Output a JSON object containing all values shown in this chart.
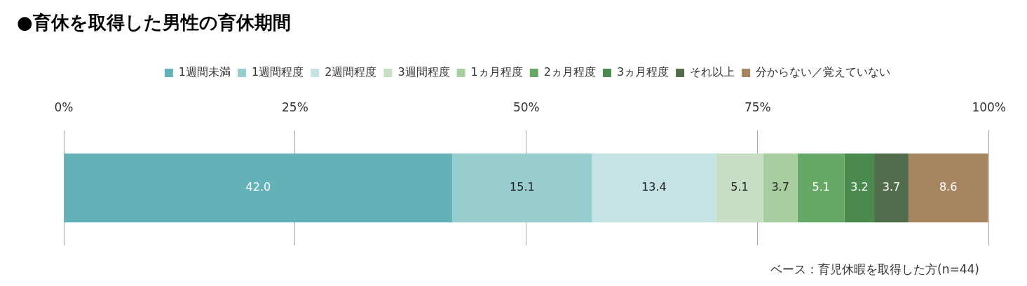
{
  "chart_data": {
    "type": "bar",
    "orientation": "horizontal",
    "stacked": true,
    "title": "●育休を取得した男性の育休期間",
    "categories": [
      null
    ],
    "series": [
      {
        "name": "1週間未満",
        "color": "#62b2b8",
        "values": [
          42.0
        ],
        "value_labels": [
          "42.0"
        ]
      },
      {
        "name": "1週間程度",
        "color": "#98cdd0",
        "values": [
          15.1
        ],
        "value_labels": [
          "15.1"
        ]
      },
      {
        "name": "2週間程度",
        "color": "#c5e2e4",
        "values": [
          13.4
        ],
        "value_labels": [
          "13.4"
        ]
      },
      {
        "name": "3週間程度",
        "color": "#c6dfc4",
        "values": [
          5.1
        ],
        "value_labels": [
          "5.1"
        ]
      },
      {
        "name": "1ヵ月程度",
        "color": "#a8cda0",
        "values": [
          3.7
        ],
        "value_labels": [
          "3.7"
        ]
      },
      {
        "name": "2ヵ月程度",
        "color": "#66a866",
        "values": [
          5.1
        ],
        "value_labels": [
          "5.1"
        ]
      },
      {
        "name": "3ヵ月程度",
        "color": "#4a8a4e",
        "values": [
          3.2
        ],
        "value_labels": [
          "3.2"
        ]
      },
      {
        "name": "それ以上",
        "color": "#516d4b",
        "values": [
          3.7
        ],
        "value_labels": [
          "3.7"
        ]
      },
      {
        "name": "分からない／覚えていない",
        "color": "#a68660",
        "values": [
          8.6
        ],
        "value_labels": [
          "8.6"
        ]
      }
    ],
    "xlim": [
      0,
      100
    ],
    "xticks": [
      {
        "value": 0,
        "label": "0%"
      },
      {
        "value": 25,
        "label": "25%"
      },
      {
        "value": 50,
        "label": "50%"
      },
      {
        "value": 75,
        "label": "75%"
      },
      {
        "value": 100,
        "label": "100%"
      }
    ],
    "grid": "x",
    "legend": "top",
    "tick_labels": "x",
    "annotations": [
      "ベース：育児休暇を取得した方(n=44)"
    ]
  }
}
